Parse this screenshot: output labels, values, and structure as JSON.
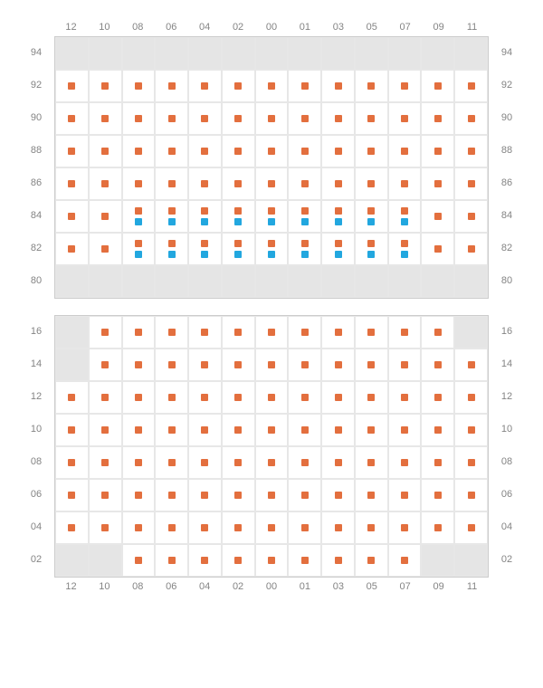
{
  "colors": {
    "orange": "#e36f3e",
    "blue": "#22a7df",
    "grid_bg": "#e5e5e5",
    "cell_bg": "#ffffff",
    "border": "#e7e7e7",
    "label": "#848484"
  },
  "top_section": {
    "columns": [
      "12",
      "10",
      "08",
      "06",
      "04",
      "02",
      "00",
      "01",
      "03",
      "05",
      "07",
      "09",
      "11"
    ],
    "rows": [
      "94",
      "92",
      "90",
      "88",
      "86",
      "84",
      "82",
      "80"
    ],
    "cells": [
      [
        "empty",
        "empty",
        "empty",
        "empty",
        "empty",
        "empty",
        "empty",
        "empty",
        "empty",
        "empty",
        "empty",
        "empty",
        "empty"
      ],
      [
        "orange",
        "orange",
        "orange",
        "orange",
        "orange",
        "orange",
        "orange",
        "orange",
        "orange",
        "orange",
        "orange",
        "orange",
        "orange"
      ],
      [
        "orange",
        "orange",
        "orange",
        "orange",
        "orange",
        "orange",
        "orange",
        "orange",
        "orange",
        "orange",
        "orange",
        "orange",
        "orange"
      ],
      [
        "orange",
        "orange",
        "orange",
        "orange",
        "orange",
        "orange",
        "orange",
        "orange",
        "orange",
        "orange",
        "orange",
        "orange",
        "orange"
      ],
      [
        "orange",
        "orange",
        "orange",
        "orange",
        "orange",
        "orange",
        "orange",
        "orange",
        "orange",
        "orange",
        "orange",
        "orange",
        "orange"
      ],
      [
        "orange",
        "orange",
        "both",
        "both",
        "both",
        "both",
        "both",
        "both",
        "both",
        "both",
        "both",
        "orange",
        "orange"
      ],
      [
        "orange",
        "orange",
        "both",
        "both",
        "both",
        "both",
        "both",
        "both",
        "both",
        "both",
        "both",
        "orange",
        "orange"
      ],
      [
        "empty",
        "empty",
        "empty",
        "empty",
        "empty",
        "empty",
        "empty",
        "empty",
        "empty",
        "empty",
        "empty",
        "empty",
        "empty"
      ]
    ]
  },
  "bottom_section": {
    "columns": [
      "12",
      "10",
      "08",
      "06",
      "04",
      "02",
      "00",
      "01",
      "03",
      "05",
      "07",
      "09",
      "11"
    ],
    "rows": [
      "16",
      "14",
      "12",
      "10",
      "08",
      "06",
      "04",
      "02"
    ],
    "cells": [
      [
        "empty",
        "orange",
        "orange",
        "orange",
        "orange",
        "orange",
        "orange",
        "orange",
        "orange",
        "orange",
        "orange",
        "orange",
        "empty"
      ],
      [
        "empty",
        "orange",
        "orange",
        "orange",
        "orange",
        "orange",
        "orange",
        "orange",
        "orange",
        "orange",
        "orange",
        "orange",
        "orange"
      ],
      [
        "orange",
        "orange",
        "orange",
        "orange",
        "orange",
        "orange",
        "orange",
        "orange",
        "orange",
        "orange",
        "orange",
        "orange",
        "orange"
      ],
      [
        "orange",
        "orange",
        "orange",
        "orange",
        "orange",
        "orange",
        "orange",
        "orange",
        "orange",
        "orange",
        "orange",
        "orange",
        "orange"
      ],
      [
        "orange",
        "orange",
        "orange",
        "orange",
        "orange",
        "orange",
        "orange",
        "orange",
        "orange",
        "orange",
        "orange",
        "orange",
        "orange"
      ],
      [
        "orange",
        "orange",
        "orange",
        "orange",
        "orange",
        "orange",
        "orange",
        "orange",
        "orange",
        "orange",
        "orange",
        "orange",
        "orange"
      ],
      [
        "orange",
        "orange",
        "orange",
        "orange",
        "orange",
        "orange",
        "orange",
        "orange",
        "orange",
        "orange",
        "orange",
        "orange",
        "orange"
      ],
      [
        "empty",
        "empty",
        "orange",
        "orange",
        "orange",
        "orange",
        "orange",
        "orange",
        "orange",
        "orange",
        "orange",
        "empty",
        "empty"
      ]
    ]
  }
}
